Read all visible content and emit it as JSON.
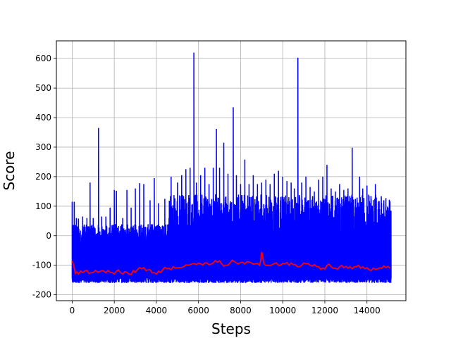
{
  "chart_data": {
    "type": "line",
    "title": "",
    "xlabel": "Steps",
    "ylabel": "Score",
    "xlim": [
      -750,
      15850
    ],
    "ylim": [
      -220,
      660
    ],
    "grid": true,
    "x_ticks": [
      0,
      2000,
      4000,
      6000,
      8000,
      10000,
      12000,
      14000
    ],
    "y_ticks": [
      -200,
      -100,
      0,
      100,
      200,
      300,
      400,
      500,
      600
    ],
    "series": [
      {
        "color": "#0000ff",
        "description_points": "raw episode scores",
        "x": [
          0,
          100,
          200,
          300,
          500,
          700,
          850,
          1000,
          1250,
          1400,
          1600,
          1800,
          2000,
          2100,
          2400,
          2600,
          2800,
          3000,
          3200,
          3400,
          3700,
          3900,
          4100,
          4400,
          4600,
          4700,
          5000,
          5200,
          5400,
          5600,
          5780,
          5900,
          6100,
          6300,
          6500,
          6700,
          6850,
          7000,
          7200,
          7400,
          7650,
          7800,
          8000,
          8200,
          8400,
          8600,
          8800,
          9000,
          9200,
          9400,
          9600,
          9800,
          10000,
          10200,
          10400,
          10550,
          10720,
          10900,
          11100,
          11300,
          11500,
          11700,
          11900,
          12100,
          12300,
          12500,
          12700,
          12900,
          13100,
          13300,
          13450,
          13650,
          13800,
          14000,
          14200,
          14400,
          14600,
          14800,
          15000
        ],
        "values": [
          115,
          115,
          60,
          58,
          65,
          60,
          180,
          60,
          365,
          65,
          65,
          95,
          155,
          152,
          60,
          155,
          95,
          160,
          178,
          175,
          120,
          195,
          110,
          125,
          60,
          200,
          180,
          205,
          225,
          230,
          620,
          180,
          205,
          230,
          175,
          230,
          362,
          230,
          315,
          210,
          435,
          205,
          175,
          258,
          175,
          205,
          175,
          180,
          190,
          175,
          210,
          220,
          200,
          185,
          180,
          160,
          603,
          180,
          200,
          165,
          150,
          190,
          200,
          240,
          160,
          150,
          175,
          155,
          160,
          298,
          125,
          200,
          160,
          170,
          125,
          175,
          90,
          120,
          95
        ],
        "min_envelope": -160
      },
      {
        "color": "#ff0000",
        "description_points": "moving average",
        "x": [
          0,
          150,
          300,
          500,
          700,
          900,
          1100,
          1300,
          1500,
          1700,
          1900,
          2100,
          2300,
          2500,
          2700,
          2900,
          3100,
          3300,
          3500,
          3700,
          3900,
          4100,
          4300,
          4500,
          4700,
          4900,
          5100,
          5300,
          5500,
          5700,
          5900,
          6100,
          6300,
          6500,
          6700,
          6900,
          7100,
          7300,
          7500,
          7700,
          7900,
          8100,
          8300,
          8500,
          8700,
          8900,
          9000,
          9100,
          9300,
          9500,
          9700,
          9900,
          10100,
          10300,
          10500,
          10700,
          10900,
          11100,
          11300,
          11500,
          11700,
          11900,
          12100,
          12300,
          12500,
          12700,
          12900,
          13100,
          13300,
          13500,
          13700,
          13900,
          14100,
          14300,
          14500,
          14700,
          14900,
          15100
        ],
        "values": [
          -85,
          -128,
          -130,
          -125,
          -118,
          -125,
          -118,
          -122,
          -120,
          -118,
          -125,
          -120,
          -125,
          -122,
          -130,
          -118,
          -115,
          -112,
          -118,
          -115,
          -125,
          -120,
          -115,
          -112,
          -115,
          -110,
          -108,
          -105,
          -100,
          -95,
          -98,
          -95,
          -92,
          -98,
          -92,
          -90,
          -95,
          -100,
          -92,
          -88,
          -95,
          -90,
          -88,
          -92,
          -95,
          -100,
          -55,
          -95,
          -100,
          -98,
          -92,
          -100,
          -95,
          -100,
          -98,
          -105,
          -100,
          -95,
          -100,
          -98,
          -105,
          -110,
          -100,
          -105,
          -110,
          -105,
          -108,
          -110,
          -112,
          -105,
          -110,
          -112,
          -115,
          -110,
          -112,
          -110,
          -108,
          -110
        ]
      }
    ]
  }
}
